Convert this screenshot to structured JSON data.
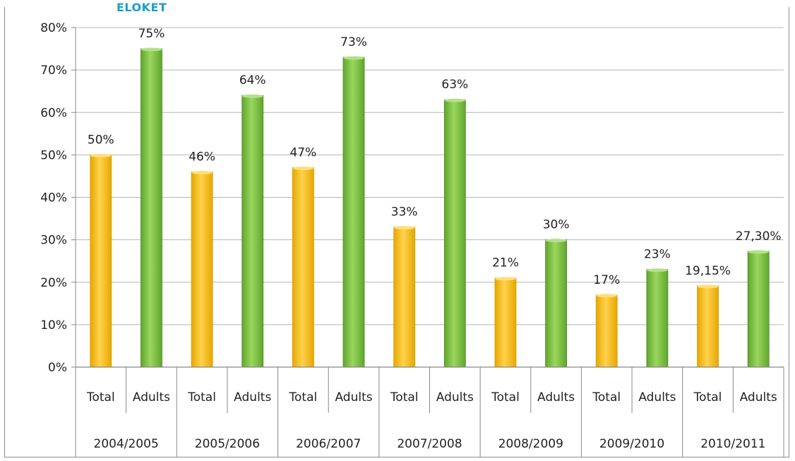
{
  "header": {
    "cropped_label": "ELOKET"
  },
  "colors": {
    "total": "#ffc000",
    "adults": "#7cc242",
    "total_dark": "#d99a00",
    "adults_dark": "#4f8a22",
    "grid": "#b4b4b4"
  },
  "chart_data": {
    "type": "bar",
    "title": "",
    "xlabel": "",
    "ylabel": "",
    "ylim": [
      0,
      80
    ],
    "ytick_labels": [
      "0%",
      "10%",
      "20%",
      "30%",
      "40%",
      "50%",
      "60%",
      "70%",
      "80%"
    ],
    "groups": [
      "2004/2005",
      "2005/2006",
      "2006/2007",
      "2007/2008",
      "2008/2009",
      "2009/2010",
      "2010/2011"
    ],
    "subcategories": [
      "Total",
      "Adults"
    ],
    "series": [
      {
        "key": "total",
        "values": [
          50,
          46,
          47,
          33,
          21,
          17,
          19.15
        ],
        "labels": [
          "50%",
          "46%",
          "47%",
          "33%",
          "21%",
          "17%",
          "19,15%"
        ]
      },
      {
        "key": "adults",
        "values": [
          75,
          64,
          73,
          63,
          30,
          23,
          27.3
        ],
        "labels": [
          "75%",
          "64%",
          "73%",
          "63%",
          "30%",
          "23%",
          "27,30%"
        ]
      }
    ],
    "grid": true,
    "legend": "none"
  }
}
